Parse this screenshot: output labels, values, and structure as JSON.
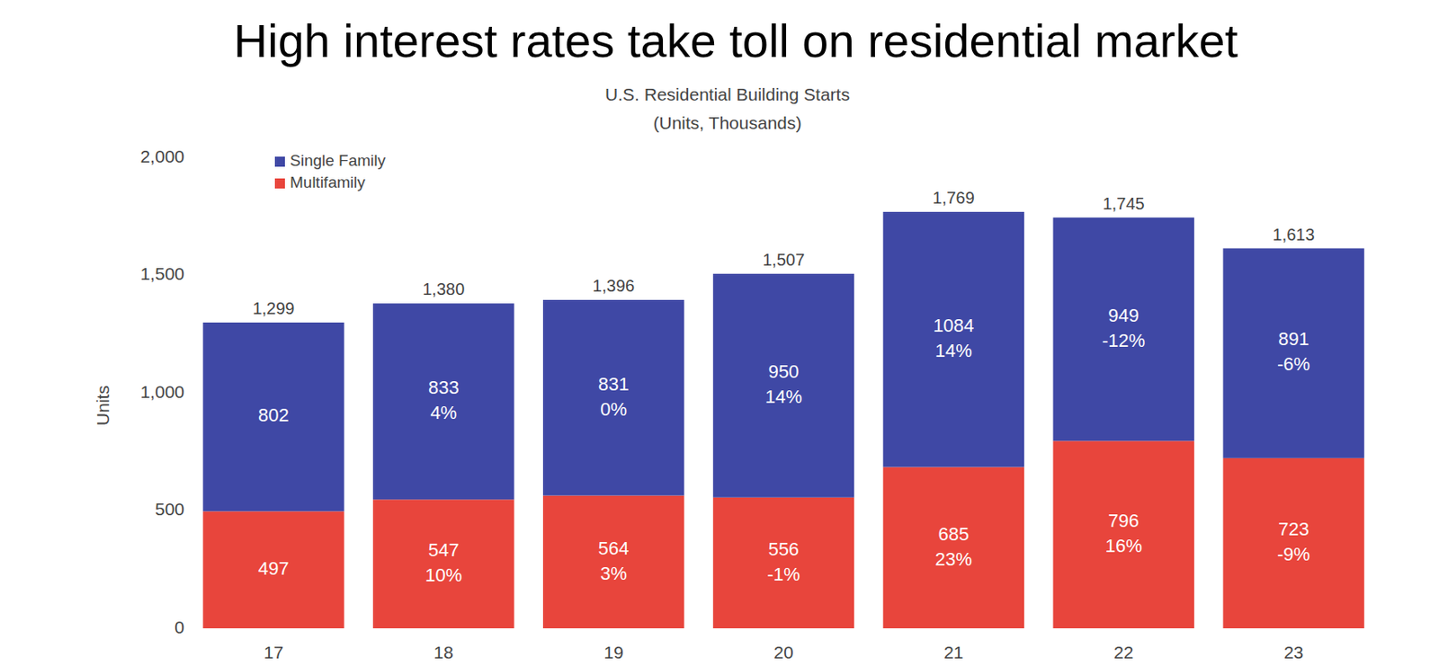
{
  "chart_data": {
    "type": "bar",
    "title": "High interest rates take toll on residential market",
    "subtitle": [
      "U.S. Residential Building Starts",
      "(Units, Thousands)"
    ],
    "y_label": "Units",
    "categories": [
      "17",
      "18",
      "19",
      "20",
      "21",
      "22",
      "23"
    ],
    "series": [
      {
        "name": "Multifamily",
        "color": "#e8453c",
        "values": [
          497,
          547,
          564,
          556,
          685,
          796,
          723
        ],
        "change_labels": [
          null,
          "10%",
          "3%",
          "-1%",
          "23%",
          "16%",
          "-9%"
        ]
      },
      {
        "name": "Single Family",
        "color": "#3f48a5",
        "values": [
          802,
          833,
          831,
          950,
          1084,
          949,
          891
        ],
        "change_labels": [
          null,
          "4%",
          "0%",
          "14%",
          "14%",
          "-12%",
          "-6%"
        ]
      }
    ],
    "totals": [
      1299,
      1380,
      1396,
      1507,
      1769,
      1745,
      1613
    ],
    "total_labels": [
      "1,299",
      "1,380",
      "1,396",
      "1,507",
      "1,769",
      "1,745",
      "1,613"
    ],
    "ylim": [
      0,
      2000
    ],
    "yticks": [
      0,
      500,
      {
        "value": 1000,
        "label": "1,000"
      },
      {
        "value": 1500,
        "label": "1,500"
      },
      {
        "value": 2000,
        "label": "2,000"
      }
    ],
    "stacked": true,
    "data_labels": true,
    "grid": false,
    "legend": "top-left"
  }
}
